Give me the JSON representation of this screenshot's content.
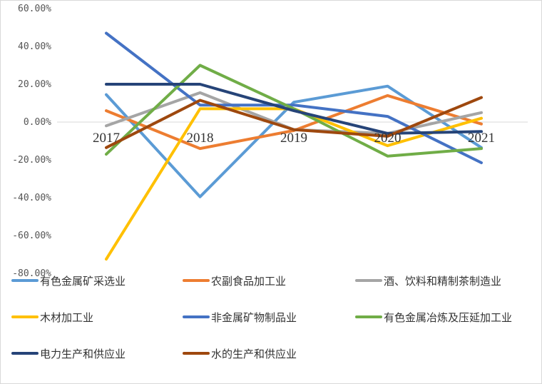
{
  "chart_data": {
    "type": "line",
    "title": "",
    "xlabel": "",
    "ylabel": "",
    "categories": [
      "2017",
      "2018",
      "2019",
      "2020",
      "2021"
    ],
    "ylim": [
      -80,
      60
    ],
    "yticks": [
      60,
      40,
      20,
      0,
      -20,
      -40,
      -60,
      -80
    ],
    "ytick_labels": [
      "60.00%",
      "40.00%",
      "20.00%",
      "0.00%",
      "-20.00%",
      "-40.00%",
      "-60.00%",
      "-80.00%"
    ],
    "grid": false,
    "legend_position": "bottom",
    "series": [
      {
        "name": "有色金属矿采选业",
        "color": "#5B9BD5",
        "values": [
          14.5,
          -39.5,
          10.5,
          19.0,
          -13.5
        ]
      },
      {
        "name": "农副食品加工业",
        "color": "#ED7D31",
        "values": [
          6.0,
          -14.0,
          -4.5,
          14.0,
          -1.0
        ]
      },
      {
        "name": "酒、饮料和精制茶制造业",
        "color": "#A5A5A5",
        "values": [
          -2.0,
          15.5,
          -4.0,
          -6.0,
          5.0
        ]
      },
      {
        "name": "木材加工业",
        "color": "#FFC000",
        "values": [
          -72.5,
          7.0,
          7.0,
          -12.5,
          2.0
        ]
      },
      {
        "name": "非金属矿物制品业",
        "color": "#4472C4",
        "values": [
          47.0,
          9.0,
          9.0,
          3.0,
          -21.5
        ]
      },
      {
        "name": "有色金属冶炼及压延加工业",
        "color": "#70AD47",
        "values": [
          -17.0,
          30.0,
          7.0,
          -18.0,
          -14.0
        ]
      },
      {
        "name": "电力生产和供应业",
        "color": "#264478",
        "values": [
          20.0,
          20.0,
          6.0,
          -6.0,
          -5.0
        ]
      },
      {
        "name": "水的生产和供应业",
        "color": "#9E480E",
        "values": [
          -13.5,
          11.5,
          -4.0,
          -7.5,
          13.0
        ]
      }
    ]
  }
}
